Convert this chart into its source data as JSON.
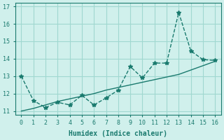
{
  "xlabel": "Humidex (Indice chaleur)",
  "x": [
    0,
    1,
    2,
    3,
    4,
    5,
    6,
    7,
    8,
    9,
    10,
    11,
    12,
    13,
    14,
    15,
    16
  ],
  "y_line": [
    13.0,
    11.6,
    11.2,
    11.5,
    11.35,
    11.9,
    11.35,
    11.75,
    12.2,
    13.55,
    12.9,
    13.75,
    13.75,
    16.65,
    14.45,
    13.95,
    13.9
  ],
  "y_trend": [
    11.0,
    11.15,
    11.35,
    11.55,
    11.7,
    11.85,
    12.0,
    12.2,
    12.35,
    12.5,
    12.65,
    12.8,
    12.95,
    13.1,
    13.35,
    13.6,
    13.85
  ],
  "line_color": "#1a7a6e",
  "trend_color": "#1a7a6e",
  "bg_color": "#d0f0ec",
  "grid_color": "#a0d8d0",
  "ylim": [
    10.8,
    17.2
  ],
  "xlim": [
    -0.5,
    16.5
  ],
  "yticks": [
    11,
    12,
    13,
    14,
    15,
    16,
    17
  ],
  "xticks": [
    0,
    1,
    2,
    3,
    4,
    5,
    6,
    7,
    8,
    9,
    10,
    11,
    12,
    13,
    14,
    15,
    16
  ]
}
